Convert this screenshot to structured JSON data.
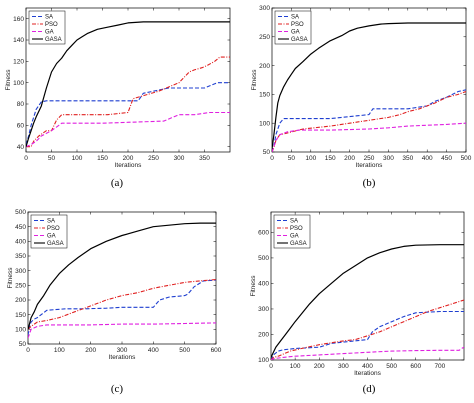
{
  "colors": {
    "SA": "#1f3fd0",
    "PSO": "#e02020",
    "GA": "#e020e0",
    "GASA": "#000000"
  },
  "chart_data": [
    {
      "type": "line",
      "caption": "(a)",
      "xlabel": "Iterations",
      "ylabel": "Fitness",
      "xlim": [
        0,
        400
      ],
      "ylim": [
        35,
        170
      ],
      "xticks": [
        0,
        50,
        100,
        150,
        200,
        250,
        300,
        350
      ],
      "yticks": [
        40,
        60,
        80,
        100,
        120,
        140,
        160
      ],
      "legend_position": "top-left",
      "series": [
        {
          "name": "SA",
          "style": "dashed",
          "x": [
            0,
            5,
            10,
            20,
            30,
            40,
            220,
            230,
            260,
            280,
            300,
            350,
            375,
            395,
            400
          ],
          "y": [
            42,
            50,
            60,
            75,
            82,
            83,
            83,
            90,
            93,
            95,
            95,
            95,
            100,
            100,
            100
          ]
        },
        {
          "name": "PSO",
          "style": "dashdot",
          "x": [
            0,
            10,
            15,
            25,
            40,
            50,
            60,
            70,
            100,
            160,
            200,
            210,
            260,
            300,
            320,
            330,
            345,
            355,
            370,
            380,
            390,
            400
          ],
          "y": [
            40,
            40,
            45,
            50,
            55,
            55,
            65,
            70,
            70,
            70,
            72,
            85,
            92,
            100,
            110,
            112,
            114,
            116,
            120,
            124,
            124,
            124
          ]
        },
        {
          "name": "GA",
          "style": "dashed",
          "x": [
            0,
            10,
            20,
            30,
            50,
            70,
            150,
            270,
            300,
            330,
            360,
            400
          ],
          "y": [
            40,
            42,
            45,
            50,
            55,
            62,
            62,
            64,
            70,
            70,
            72,
            72
          ]
        },
        {
          "name": "GASA",
          "style": "solid",
          "x": [
            0,
            5,
            10,
            15,
            20,
            30,
            40,
            50,
            60,
            70,
            80,
            90,
            100,
            110,
            120,
            140,
            160,
            180,
            200,
            230,
            260,
            300,
            350,
            400
          ],
          "y": [
            40,
            48,
            55,
            62,
            68,
            78,
            95,
            110,
            118,
            123,
            130,
            135,
            140,
            143,
            146,
            150,
            152,
            154,
            156,
            157,
            157,
            157,
            157,
            157
          ]
        }
      ]
    },
    {
      "type": "line",
      "caption": "(b)",
      "xlabel": "Iterations",
      "ylabel": "Fitness",
      "xlim": [
        0,
        500
      ],
      "ylim": [
        50,
        300
      ],
      "xticks": [
        0,
        50,
        100,
        150,
        200,
        250,
        300,
        350,
        400,
        450,
        500
      ],
      "yticks": [
        50,
        100,
        150,
        200,
        250,
        300
      ],
      "legend_position": "top-left",
      "series": [
        {
          "name": "SA",
          "style": "dashed",
          "x": [
            0,
            5,
            10,
            20,
            30,
            60,
            150,
            250,
            260,
            300,
            350,
            400,
            420,
            450,
            480,
            500
          ],
          "y": [
            50,
            60,
            80,
            100,
            108,
            108,
            108,
            115,
            125,
            125,
            125,
            130,
            138,
            145,
            155,
            158
          ]
        },
        {
          "name": "PSO",
          "style": "dashdot",
          "x": [
            0,
            5,
            10,
            20,
            40,
            80,
            150,
            200,
            250,
            300,
            330,
            350,
            380,
            400,
            420,
            450,
            480,
            500
          ],
          "y": [
            50,
            58,
            70,
            80,
            83,
            90,
            95,
            100,
            105,
            110,
            115,
            120,
            125,
            130,
            135,
            145,
            150,
            155
          ]
        },
        {
          "name": "GA",
          "style": "dashed",
          "x": [
            0,
            10,
            20,
            40,
            70,
            150,
            250,
            300,
            350,
            450,
            500
          ],
          "y": [
            50,
            70,
            80,
            85,
            88,
            88,
            90,
            92,
            95,
            98,
            100
          ]
        },
        {
          "name": "GASA",
          "style": "solid",
          "x": [
            0,
            5,
            10,
            15,
            20,
            30,
            40,
            50,
            60,
            80,
            100,
            120,
            150,
            180,
            200,
            220,
            250,
            280,
            300,
            350,
            400,
            450,
            500
          ],
          "y": [
            55,
            80,
            110,
            135,
            148,
            163,
            175,
            185,
            195,
            207,
            220,
            230,
            243,
            252,
            260,
            265,
            269,
            272,
            273,
            274,
            274,
            274,
            274
          ]
        }
      ]
    },
    {
      "type": "line",
      "caption": "(c)",
      "xlabel": "Iterations",
      "ylabel": "Fitness",
      "xlim": [
        0,
        600
      ],
      "ylim": [
        50,
        500
      ],
      "xticks": [
        0,
        100,
        200,
        300,
        400,
        500,
        600
      ],
      "yticks": [
        50,
        100,
        150,
        200,
        250,
        300,
        350,
        400,
        450,
        500
      ],
      "legend_position": "top-left",
      "series": [
        {
          "name": "SA",
          "style": "dashed",
          "x": [
            0,
            5,
            10,
            20,
            30,
            60,
            120,
            180,
            250,
            300,
            350,
            400,
            420,
            450,
            500,
            510,
            530,
            560,
            600
          ],
          "y": [
            80,
            110,
            125,
            135,
            140,
            165,
            170,
            170,
            172,
            175,
            175,
            175,
            200,
            210,
            215,
            220,
            245,
            265,
            268
          ]
        },
        {
          "name": "PSO",
          "style": "dashdot",
          "x": [
            0,
            10,
            30,
            60,
            100,
            150,
            200,
            250,
            300,
            350,
            400,
            450,
            500,
            550,
            600
          ],
          "y": [
            100,
            110,
            125,
            130,
            140,
            160,
            180,
            200,
            215,
            225,
            240,
            250,
            260,
            265,
            270
          ]
        },
        {
          "name": "GA",
          "style": "dashed",
          "x": [
            0,
            10,
            30,
            60,
            100,
            200,
            300,
            400,
            500,
            600
          ],
          "y": [
            70,
            100,
            110,
            115,
            115,
            115,
            118,
            118,
            120,
            122
          ]
        },
        {
          "name": "GASA",
          "style": "solid",
          "x": [
            0,
            5,
            10,
            20,
            30,
            50,
            70,
            100,
            130,
            160,
            200,
            250,
            300,
            350,
            400,
            450,
            500,
            550,
            600
          ],
          "y": [
            100,
            120,
            140,
            160,
            185,
            215,
            250,
            290,
            320,
            345,
            375,
            400,
            420,
            435,
            450,
            455,
            460,
            462,
            462
          ]
        }
      ]
    },
    {
      "type": "line",
      "caption": "(d)",
      "xlabel": "Iterations",
      "ylabel": "Fitness",
      "xlim": [
        0,
        800
      ],
      "ylim": [
        100,
        680
      ],
      "xticks": [
        0,
        100,
        200,
        300,
        400,
        500,
        600,
        700
      ],
      "yticks": [
        100,
        200,
        300,
        400,
        500,
        600
      ],
      "legend_position": "top-left",
      "series": [
        {
          "name": "SA",
          "style": "dashed",
          "x": [
            0,
            10,
            30,
            50,
            100,
            200,
            250,
            300,
            400,
            420,
            450,
            500,
            550,
            600,
            700,
            800
          ],
          "y": [
            100,
            120,
            135,
            140,
            145,
            150,
            165,
            170,
            180,
            210,
            230,
            250,
            270,
            285,
            290,
            290
          ]
        },
        {
          "name": "PSO",
          "style": "dashdot",
          "x": [
            0,
            10,
            30,
            80,
            150,
            200,
            300,
            350,
            400,
            450,
            500,
            550,
            600,
            650,
            700,
            750,
            800
          ],
          "y": [
            100,
            110,
            115,
            135,
            150,
            160,
            175,
            180,
            195,
            210,
            230,
            250,
            270,
            290,
            305,
            320,
            335
          ]
        },
        {
          "name": "GA",
          "style": "dashed",
          "x": [
            0,
            10,
            50,
            100,
            200,
            300,
            400,
            500,
            600,
            700,
            780,
            790,
            800
          ],
          "y": [
            100,
            105,
            110,
            115,
            120,
            125,
            130,
            135,
            137,
            138,
            138,
            145,
            150
          ]
        },
        {
          "name": "GASA",
          "style": "solid",
          "x": [
            0,
            10,
            20,
            40,
            60,
            80,
            100,
            130,
            160,
            200,
            250,
            300,
            350,
            400,
            450,
            500,
            550,
            600,
            700,
            800
          ],
          "y": [
            110,
            130,
            150,
            175,
            200,
            225,
            250,
            285,
            320,
            360,
            400,
            440,
            470,
            500,
            520,
            535,
            545,
            550,
            552,
            552
          ]
        }
      ]
    }
  ]
}
